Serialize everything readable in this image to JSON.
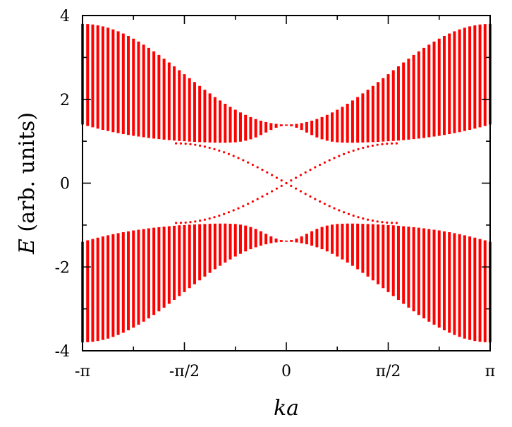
{
  "chart_data": {
    "type": "band-structure",
    "title": "",
    "xlabel": "ka",
    "ylabel": "E (arb. units)",
    "ylabel_italic": "E",
    "ylabel_rest": " (arb. units)",
    "xlim": [
      -3.14159,
      3.14159
    ],
    "ylim": [
      -4,
      4
    ],
    "x_ticks": [
      {
        "value": -3.14159,
        "label": "-π"
      },
      {
        "value": -1.5708,
        "label": "-π/2"
      },
      {
        "value": 0,
        "label": "0"
      },
      {
        "value": 1.5708,
        "label": "π/2"
      },
      {
        "value": 3.14159,
        "label": "π"
      }
    ],
    "y_ticks": [
      {
        "value": -4,
        "label": "-4"
      },
      {
        "value": -2,
        "label": "-2"
      },
      {
        "value": 0,
        "label": "0"
      },
      {
        "value": 2,
        "label": "2"
      },
      {
        "value": 4,
        "label": "4"
      }
    ],
    "grid": false,
    "color": "#ff0000",
    "bands": {
      "num_k_points": 81,
      "upper_band_min_at_zone_edge": 1.4,
      "upper_band_max_at_zone_edge": 3.8,
      "upper_band_min_at_center": 0.95,
      "upper_band_max_at_center": 1.4,
      "lower_band_is_mirror": true
    },
    "edge_states": {
      "crossing_point": [
        0,
        0
      ],
      "merge_energy": 0.95,
      "merge_k": 1.7
    }
  }
}
